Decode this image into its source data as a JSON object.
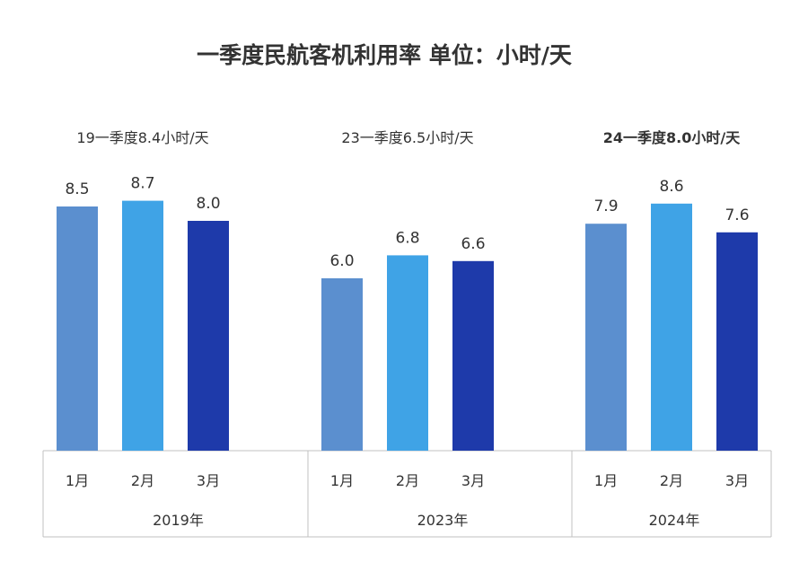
{
  "chart_data": {
    "type": "bar",
    "title": "一季度民航客机利用率 单位：小时/天",
    "ylim": [
      0,
      10
    ],
    "grid": false,
    "legend": "none",
    "colors": [
      "#5b8fcf",
      "#3fa3e6",
      "#1e3aaa"
    ],
    "axis_color": "#c0c0c0",
    "groups": [
      {
        "name": "2019年",
        "summary": "19一季度8.4小时/天",
        "summary_bold": false,
        "categories": [
          "1月",
          "2月",
          "3月"
        ],
        "values": [
          8.5,
          8.7,
          8.0
        ],
        "labels": [
          "8.5",
          "8.7",
          "8.0"
        ]
      },
      {
        "name": "2023年",
        "summary": "23一季度6.5小时/天",
        "summary_bold": false,
        "categories": [
          "1月",
          "2月",
          "3月"
        ],
        "values": [
          6.0,
          6.8,
          6.6
        ],
        "labels": [
          "6.0",
          "6.8",
          "6.6"
        ]
      },
      {
        "name": "2024年",
        "summary": "24一季度8.0小时/天",
        "summary_bold": true,
        "categories": [
          "1月",
          "2月",
          "3月"
        ],
        "values": [
          7.9,
          8.6,
          7.6
        ],
        "labels": [
          "7.9",
          "8.6",
          "7.6"
        ]
      }
    ]
  }
}
